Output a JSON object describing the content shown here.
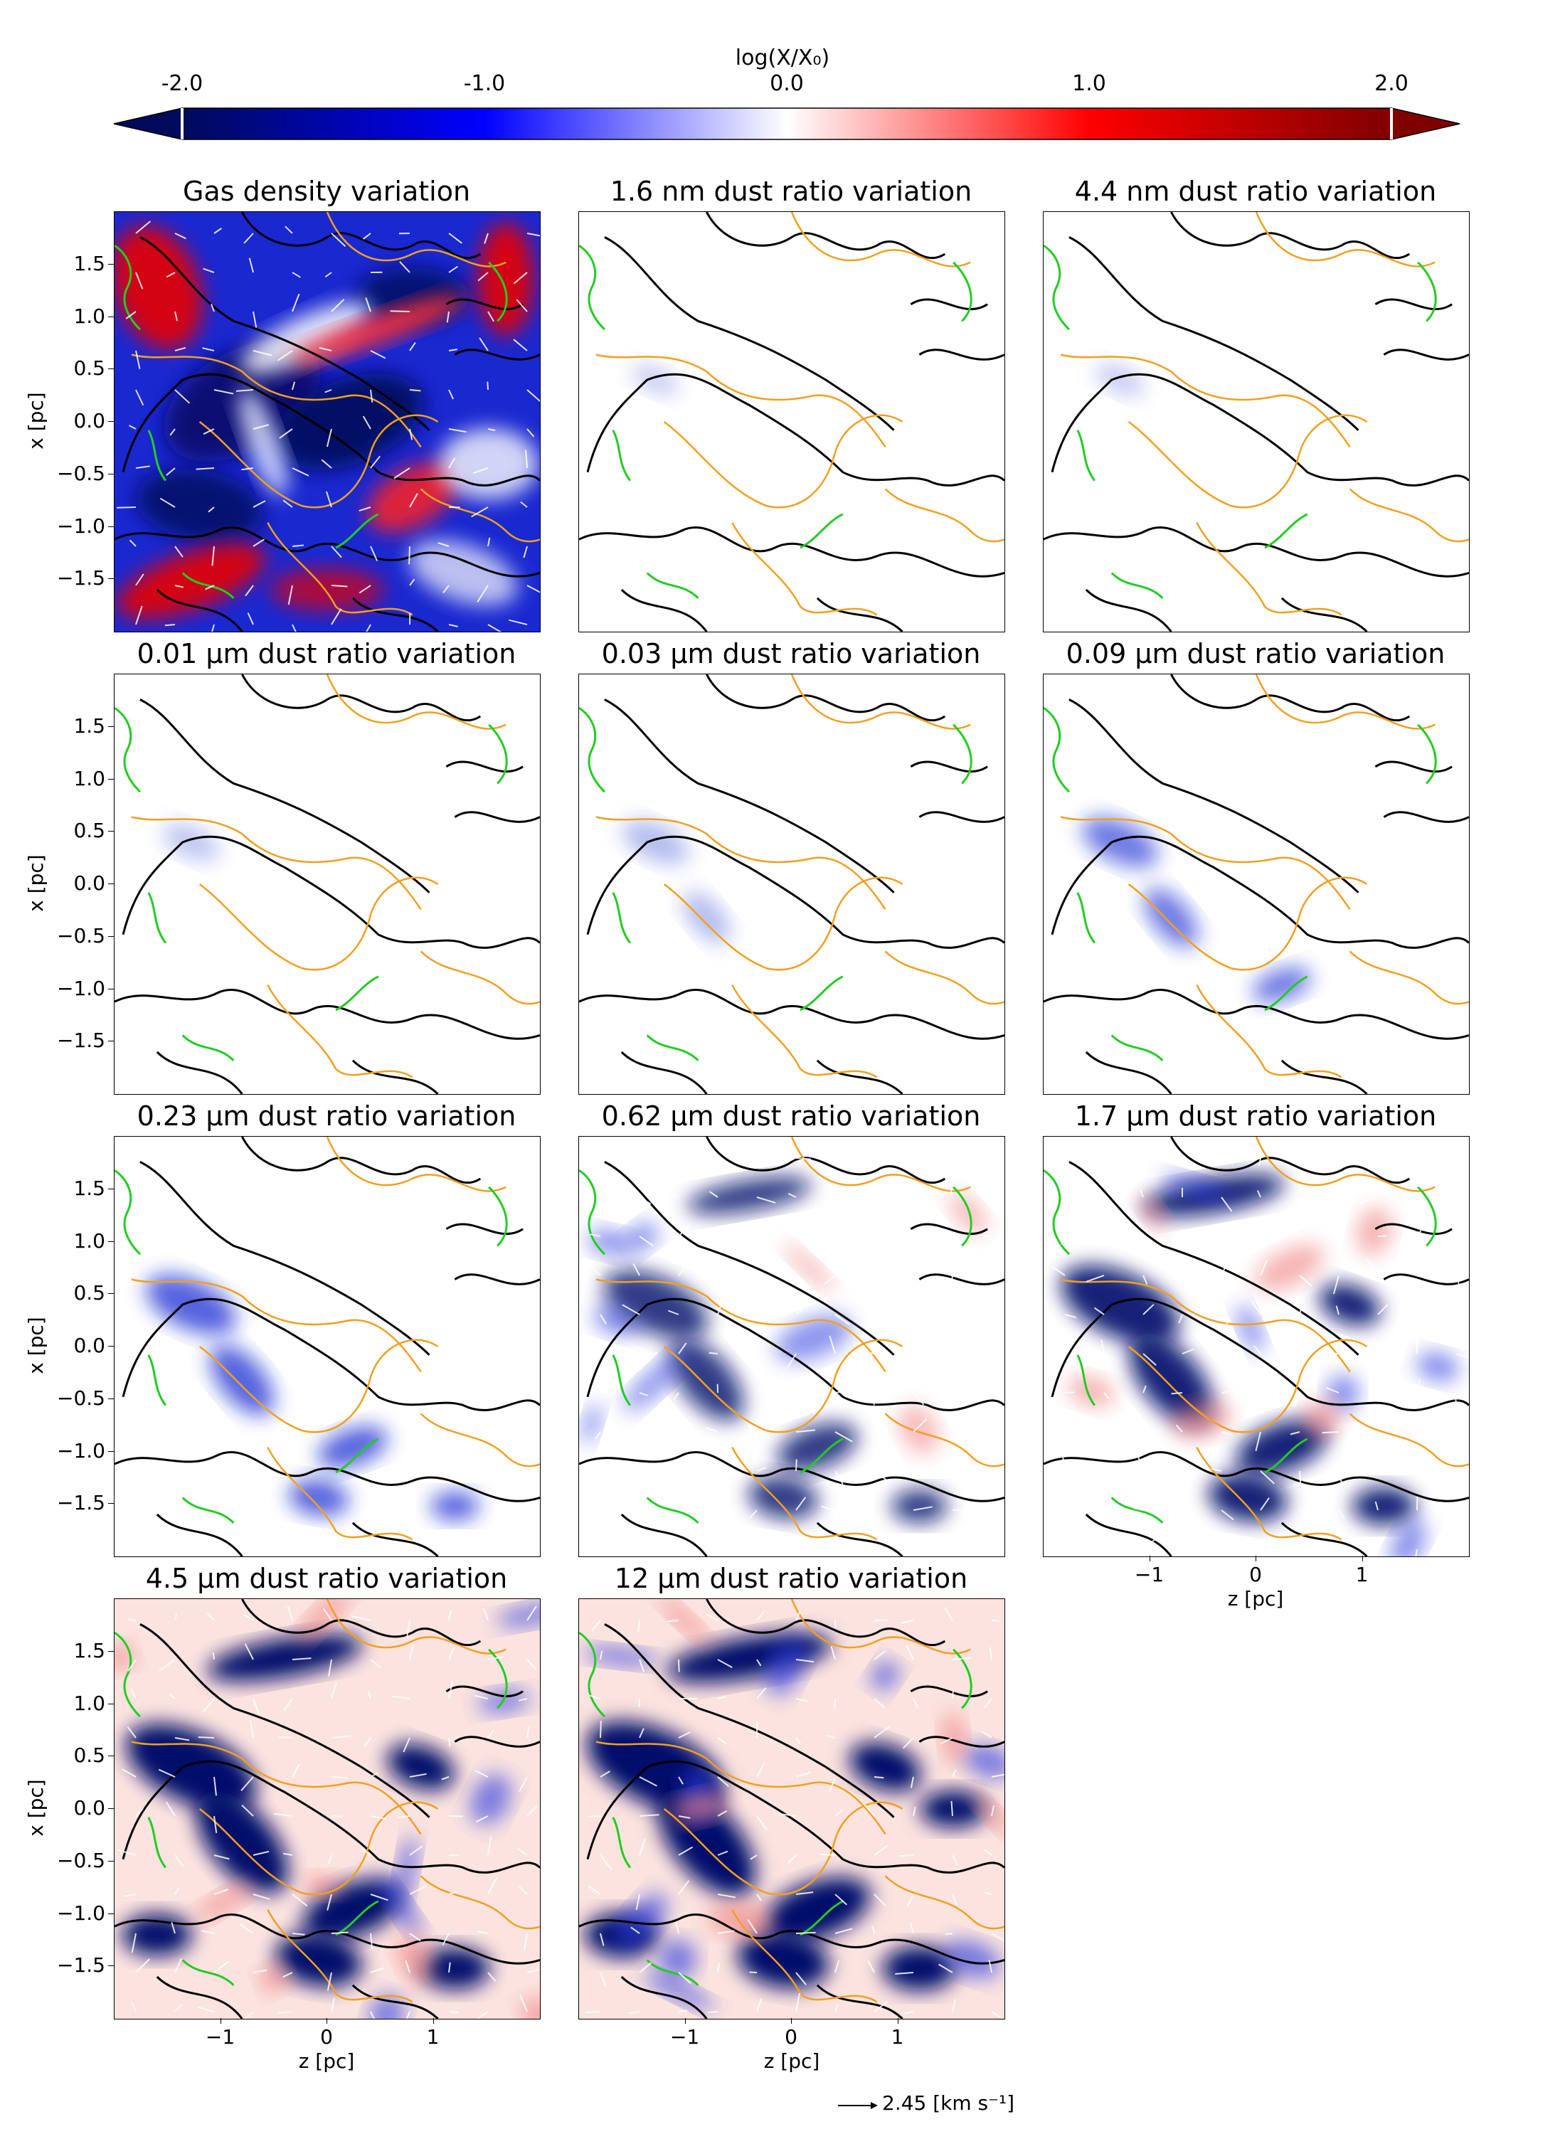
{
  "colorbar": {
    "title": "log(X/X₀)",
    "ticks": [
      "-2.0",
      "-1.0",
      "0.0",
      "1.0",
      "2.0"
    ],
    "tick_values": [
      -2.0,
      -1.0,
      0.0,
      1.0,
      2.0
    ],
    "range": [
      -2.0,
      2.0
    ],
    "colors": [
      "#0a0a5a",
      "#0000ff",
      "#ffffff",
      "#ff0000",
      "#7a0000"
    ],
    "extend": "both"
  },
  "axes": {
    "xlabel": "z [pc]",
    "ylabel": "x [pc]",
    "yticks": [
      "1.5",
      "1.0",
      "0.5",
      "0.0",
      "−0.5",
      "−1.0",
      "−1.5"
    ],
    "ytick_values": [
      1.5,
      1.0,
      0.5,
      0.0,
      -0.5,
      -1.0,
      -1.5
    ],
    "xticks": [
      "−1",
      "0",
      "1"
    ],
    "xtick_values": [
      -1,
      0,
      1
    ],
    "xlim": [
      -2.0,
      2.0
    ],
    "ylim": [
      -2.0,
      2.0
    ]
  },
  "vector_key": {
    "label": "2.45 [km s⁻¹]"
  },
  "contour_colors": {
    "black": "#000000",
    "orange": "#f0a020",
    "green": "#22cc22"
  },
  "chart_data": {
    "type": "heatmap",
    "layout": "4x3 grid of maps",
    "panels": [
      {
        "title": "Gas density variation",
        "variation": "gas",
        "deviation_level": 1.0
      },
      {
        "title": "1.6 nm dust ratio variation",
        "variation": "dust",
        "deviation_level": 0.05
      },
      {
        "title": "4.4 nm dust ratio variation",
        "variation": "dust",
        "deviation_level": 0.07
      },
      {
        "title": "0.01 μm dust ratio variation",
        "variation": "dust",
        "deviation_level": 0.15
      },
      {
        "title": "0.03 μm dust ratio variation",
        "variation": "dust",
        "deviation_level": 0.25
      },
      {
        "title": "0.09 μm dust ratio variation",
        "variation": "dust",
        "deviation_level": 0.35
      },
      {
        "title": "0.23 μm dust ratio variation",
        "variation": "dust",
        "deviation_level": 0.5
      },
      {
        "title": "0.62 μm dust ratio variation",
        "variation": "dust",
        "deviation_level": 0.65
      },
      {
        "title": "1.7 μm dust ratio variation",
        "variation": "dust",
        "deviation_level": 0.8
      },
      {
        "title": "4.5 μm dust ratio variation",
        "variation": "dust",
        "deviation_level": 0.92
      },
      {
        "title": "12 μm dust ratio variation",
        "variation": "dust",
        "deviation_level": 1.0
      }
    ]
  }
}
